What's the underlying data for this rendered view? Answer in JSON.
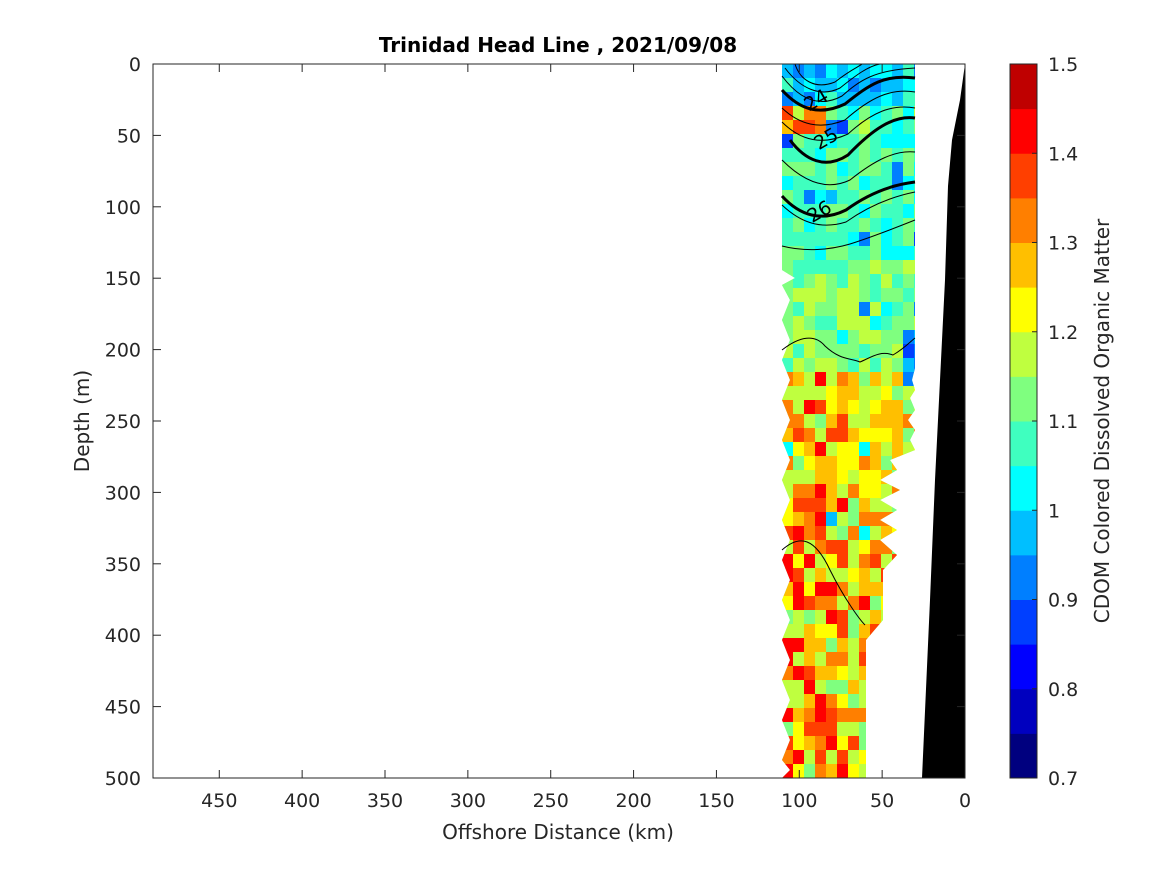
{
  "chart_data": {
    "type": "heatmap",
    "title": "Trinidad Head Line , 2021/09/08",
    "xlabel": "Offshore Distance (km)",
    "ylabel": "Depth (m)",
    "colorbar_label": "CDOM Colored Dissolved Organic Matter",
    "xlim": [
      490,
      0
    ],
    "ylim": [
      0,
      500
    ],
    "x_reversed": true,
    "y_reversed": true,
    "x_ticks": [
      450,
      400,
      350,
      300,
      250,
      200,
      150,
      100,
      50,
      0
    ],
    "y_ticks": [
      0,
      50,
      100,
      150,
      200,
      250,
      300,
      350,
      400,
      450,
      500
    ],
    "colorbar_range": [
      0.7,
      1.5
    ],
    "colorbar_ticks": [
      1.5,
      1.4,
      1.3,
      1.2,
      1.1,
      1,
      0.9,
      0.8,
      0.7
    ],
    "colormap": "jet",
    "colorbar_levels": 16,
    "colorbar_colors": [
      "#00007f",
      "#0000bf",
      "#0000ff",
      "#003fff",
      "#007fff",
      "#00bfff",
      "#00ffff",
      "#3fffbf",
      "#7fff7f",
      "#bfff3f",
      "#ffff00",
      "#ffbf00",
      "#ff7f00",
      "#ff3f00",
      "#ff0000",
      "#bf0000"
    ],
    "contour_labels": [
      {
        "text": "24",
        "x": 90,
        "y": 25
      },
      {
        "text": "25",
        "x": 84,
        "y": 52
      },
      {
        "text": "26",
        "x": 88,
        "y": 103
      }
    ],
    "bathymetry_color": "#000000",
    "grid": false,
    "colorbar_position": "right"
  }
}
